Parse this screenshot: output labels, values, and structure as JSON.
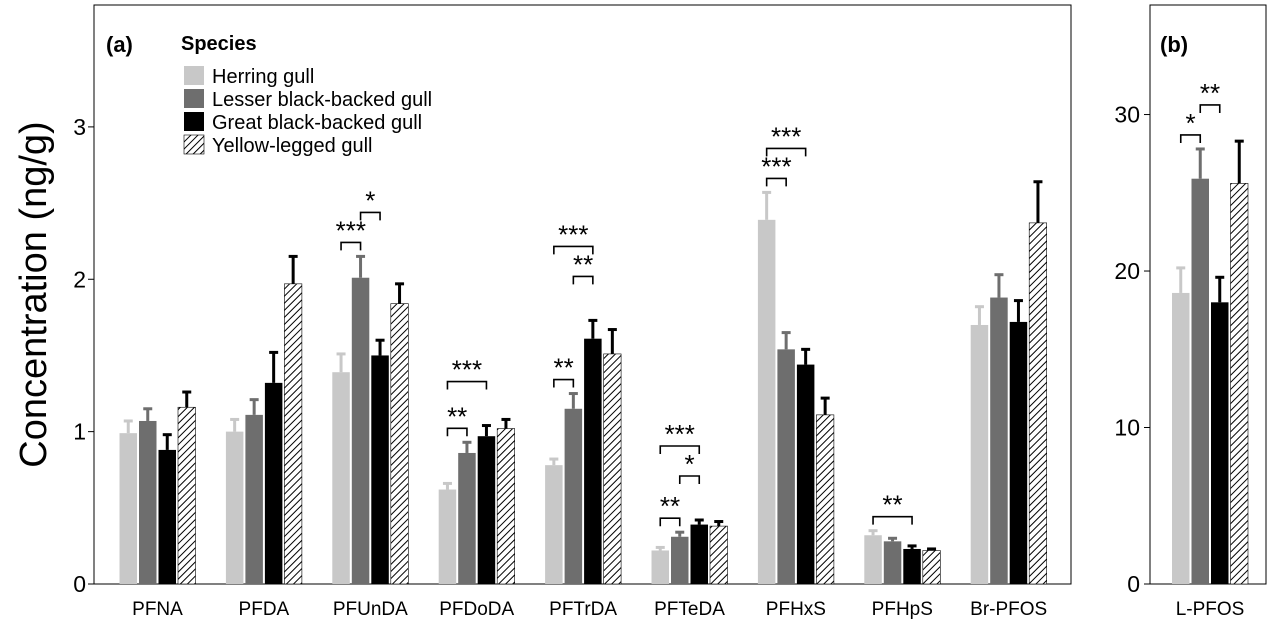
{
  "chart_data": [
    {
      "panel": "(a)",
      "type": "bar",
      "ylabel": "Concentration (ng/g)",
      "ylim": [
        0,
        3.8
      ],
      "yticks": [
        "0",
        "1",
        "2",
        "3"
      ],
      "grid": false,
      "legend": {
        "title": "Species",
        "position": "top-left",
        "entries": [
          "Herring gull",
          "Lesser black-backed gull",
          "Great black-backed gull",
          "Yellow-legged gull"
        ]
      },
      "categories": [
        "PFNA",
        "PFDA",
        "PFUnDA",
        "PFDoDA",
        "PFTrDA",
        "PFTeDA",
        "PFHxS",
        "PFHpS",
        "Br-PFOS"
      ],
      "series": [
        {
          "name": "Herring gull",
          "color": "#c8c8c8",
          "pattern": "solid",
          "values": [
            0.99,
            1.0,
            1.39,
            0.62,
            0.78,
            0.22,
            2.39,
            0.32,
            1.7
          ],
          "errors": [
            0.08,
            0.08,
            0.12,
            0.04,
            0.04,
            0.02,
            0.18,
            0.03,
            0.12
          ]
        },
        {
          "name": "Lesser black-backed gull",
          "color": "#6e6e6e",
          "pattern": "solid",
          "values": [
            1.07,
            1.11,
            2.01,
            0.86,
            1.15,
            0.31,
            1.54,
            0.28,
            1.88
          ],
          "errors": [
            0.08,
            0.1,
            0.14,
            0.07,
            0.1,
            0.03,
            0.11,
            0.02,
            0.15
          ]
        },
        {
          "name": "Great black-backed gull",
          "color": "#000000",
          "pattern": "solid",
          "values": [
            0.88,
            1.32,
            1.5,
            0.97,
            1.61,
            0.39,
            1.44,
            0.23,
            1.72
          ],
          "errors": [
            0.1,
            0.2,
            0.1,
            0.07,
            0.12,
            0.03,
            0.1,
            0.02,
            0.14
          ]
        },
        {
          "name": "Yellow-legged gull",
          "color": "#ffffff",
          "pattern": "hatch",
          "values": [
            1.16,
            1.97,
            1.84,
            1.02,
            1.51,
            0.38,
            1.11,
            0.22,
            2.37
          ],
          "errors": [
            0.1,
            0.18,
            0.13,
            0.06,
            0.16,
            0.03,
            0.11,
            0.01,
            0.27
          ]
        }
      ],
      "significance": [
        {
          "category": "PFUnDA",
          "from": 0,
          "to": 1,
          "label": "***"
        },
        {
          "category": "PFUnDA",
          "from": 1,
          "to": 2,
          "label": "*"
        },
        {
          "category": "PFDoDA",
          "from": 0,
          "to": 1,
          "label": "**"
        },
        {
          "category": "PFDoDA",
          "from": 0,
          "to": 2,
          "label": "***"
        },
        {
          "category": "PFTrDA",
          "from": 0,
          "to": 1,
          "label": "**"
        },
        {
          "category": "PFTrDA",
          "from": 1,
          "to": 2,
          "label": "**"
        },
        {
          "category": "PFTrDA",
          "from": 0,
          "to": 2,
          "label": "***"
        },
        {
          "category": "PFTeDA",
          "from": 0,
          "to": 1,
          "label": "**"
        },
        {
          "category": "PFTeDA",
          "from": 1,
          "to": 2,
          "label": "*"
        },
        {
          "category": "PFTeDA",
          "from": 0,
          "to": 2,
          "label": "***"
        },
        {
          "category": "PFHxS",
          "from": 0,
          "to": 1,
          "label": "***"
        },
        {
          "category": "PFHxS",
          "from": 0,
          "to": 2,
          "label": "***"
        },
        {
          "category": "PFHpS",
          "from": 0,
          "to": 2,
          "label": "**"
        }
      ]
    },
    {
      "panel": "(b)",
      "type": "bar",
      "ylabel": "",
      "ylim": [
        0,
        37
      ],
      "yticks": [
        "0",
        "10",
        "20",
        "30"
      ],
      "grid": false,
      "categories": [
        "L-PFOS"
      ],
      "series": [
        {
          "name": "Herring gull",
          "color": "#c8c8c8",
          "pattern": "solid",
          "values": [
            18.6
          ],
          "errors": [
            1.6
          ]
        },
        {
          "name": "Lesser black-backed gull",
          "color": "#6e6e6e",
          "pattern": "solid",
          "values": [
            25.9
          ],
          "errors": [
            1.9
          ]
        },
        {
          "name": "Great black-backed gull",
          "color": "#000000",
          "pattern": "solid",
          "values": [
            18.0
          ],
          "errors": [
            1.6
          ]
        },
        {
          "name": "Yellow-legged gull",
          "color": "#ffffff",
          "pattern": "hatch",
          "values": [
            25.6
          ],
          "errors": [
            2.7
          ]
        }
      ],
      "significance": [
        {
          "category": "L-PFOS",
          "from": 0,
          "to": 1,
          "label": "*"
        },
        {
          "category": "L-PFOS",
          "from": 1,
          "to": 2,
          "label": "**"
        }
      ]
    }
  ]
}
